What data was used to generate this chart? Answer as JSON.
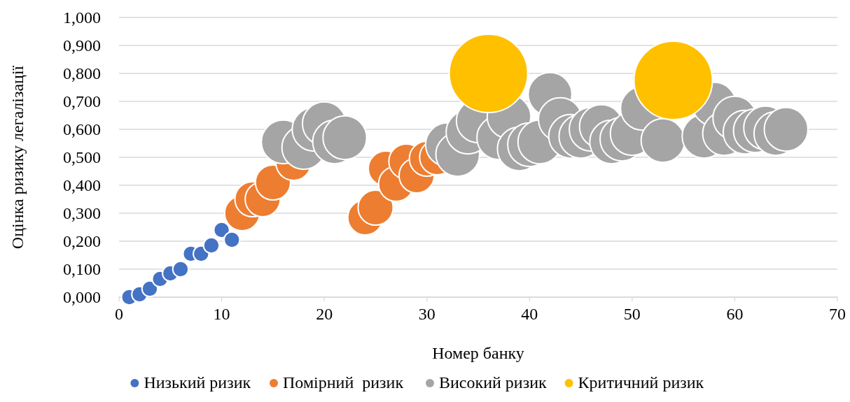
{
  "chart_data": {
    "type": "bubble",
    "xlabel": "Номер банку",
    "ylabel": "Оцінка ризику легалізації",
    "xlim": [
      0,
      70
    ],
    "xticks": [
      0,
      10,
      20,
      30,
      40,
      50,
      60,
      70
    ],
    "ylim": [
      0,
      1
    ],
    "yticks": [
      {
        "value": 0,
        "label": "0,000"
      },
      {
        "value": 0.1,
        "label": "0,100"
      },
      {
        "value": 0.2,
        "label": "0,200"
      },
      {
        "value": 0.3,
        "label": "0,300"
      },
      {
        "value": 0.4,
        "label": "0,400"
      },
      {
        "value": 0.5,
        "label": "0,500"
      },
      {
        "value": 0.6,
        "label": "0,600"
      },
      {
        "value": 0.7,
        "label": "0,700"
      },
      {
        "value": 0.8,
        "label": "0,800"
      },
      {
        "value": 0.9,
        "label": "0,900"
      },
      {
        "value": 1,
        "label": "1,000"
      }
    ],
    "grid": "y",
    "legend": "bottom",
    "series": [
      {
        "name": "Низький ризик",
        "color": "#4472c4",
        "x": [
          1,
          2,
          3,
          4,
          5,
          6,
          7,
          8,
          9,
          10,
          11
        ],
        "values": [
          0.0,
          0.01,
          0.03,
          0.065,
          0.085,
          0.1,
          0.155,
          0.155,
          0.185,
          0.24,
          0.205
        ],
        "sizes": [
          0.04,
          0.04,
          0.04,
          0.04,
          0.04,
          0.04,
          0.04,
          0.04,
          0.04,
          0.04,
          0.04
        ]
      },
      {
        "name": "Помірний  ризик",
        "color": "#ed7d31",
        "x": [
          12,
          13,
          14,
          15,
          17,
          24,
          25,
          26,
          27,
          28,
          29,
          30,
          31
        ],
        "values": [
          0.3,
          0.35,
          0.35,
          0.41,
          0.48,
          0.285,
          0.32,
          0.46,
          0.405,
          0.485,
          0.435,
          0.495,
          0.5
        ],
        "sizes": [
          0.2,
          0.2,
          0.2,
          0.2,
          0.2,
          0.2,
          0.2,
          0.2,
          0.2,
          0.2,
          0.2,
          0.2,
          0.2
        ]
      },
      {
        "name": "Високий ризик",
        "color": "#a5a5a5",
        "x": [
          16,
          18,
          19,
          20,
          21,
          22,
          32,
          33,
          34,
          35,
          37,
          38,
          39,
          40,
          41,
          42,
          43,
          44,
          45,
          46,
          47,
          48,
          49,
          50,
          51,
          53,
          57,
          58,
          59,
          60,
          61,
          62,
          63,
          64,
          65
        ],
        "values": [
          0.555,
          0.535,
          0.6,
          0.62,
          0.555,
          0.57,
          0.545,
          0.51,
          0.59,
          0.63,
          0.57,
          0.645,
          0.53,
          0.545,
          0.555,
          0.725,
          0.635,
          0.575,
          0.575,
          0.6,
          0.61,
          0.555,
          0.565,
          0.585,
          0.675,
          0.56,
          0.575,
          0.69,
          0.585,
          0.64,
          0.59,
          0.595,
          0.605,
          0.585,
          0.6
        ],
        "sizes": [
          0.31,
          0.31,
          0.31,
          0.31,
          0.31,
          0.31,
          0.31,
          0.31,
          0.31,
          0.31,
          0.31,
          0.31,
          0.31,
          0.31,
          0.31,
          0.31,
          0.31,
          0.31,
          0.31,
          0.31,
          0.31,
          0.31,
          0.31,
          0.31,
          0.31,
          0.31,
          0.31,
          0.31,
          0.31,
          0.31,
          0.31,
          0.31,
          0.31,
          0.31,
          0.31
        ]
      },
      {
        "name": "Критичний ризик",
        "color": "#ffc000",
        "x": [
          36,
          54
        ],
        "values": [
          0.8,
          0.775
        ],
        "sizes": [
          1,
          1
        ]
      }
    ]
  }
}
